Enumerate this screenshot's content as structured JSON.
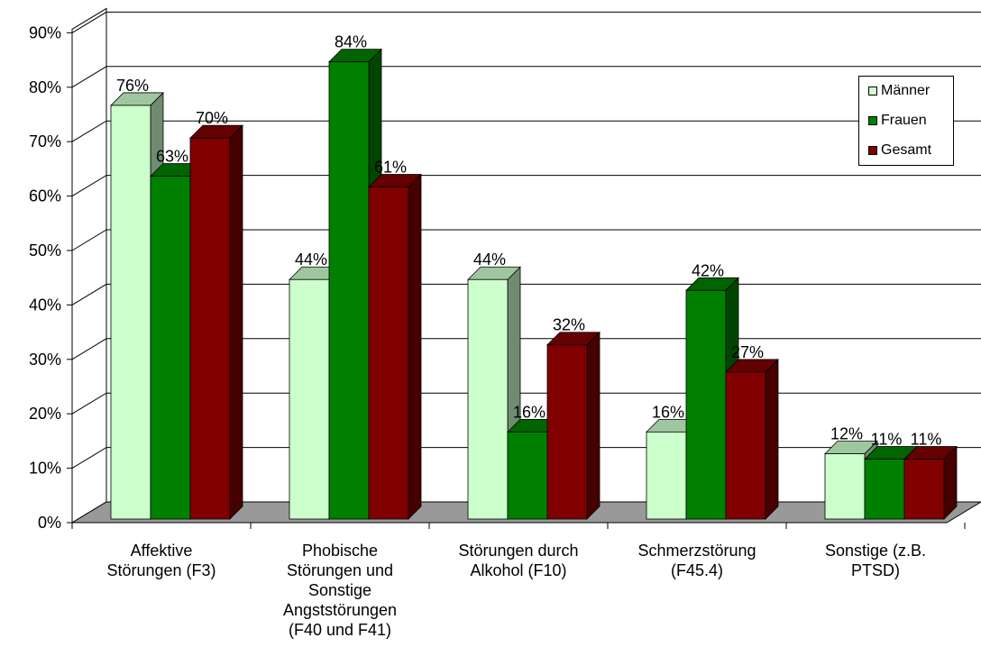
{
  "chart_data": {
    "type": "bar",
    "categories": [
      "Affektive Störungen (F3)",
      "Phobische Störungen und Sonstige Angststörungen (F40 und F41)",
      "Störungen durch Alkohol (F10)",
      "Schmerzstörung (F45.4)",
      "Sonstige (z.B. PTSD)"
    ],
    "category_lines": [
      [
        "Affektive",
        "Störungen (F3)"
      ],
      [
        "Phobische",
        "Störungen und",
        "Sonstige",
        "Angststörungen",
        "(F40 und F41)"
      ],
      [
        "Störungen durch",
        "Alkohol (F10)"
      ],
      [
        "Schmerzstörung",
        "(F45.4)"
      ],
      [
        "Sonstige (z.B.",
        "PTSD)"
      ]
    ],
    "series": [
      {
        "name": "Männer",
        "values": [
          76,
          44,
          44,
          16,
          12
        ],
        "labels": [
          "76%",
          "44%",
          "44%",
          "16%",
          "12%"
        ],
        "color": "#ccffcc"
      },
      {
        "name": "Frauen",
        "values": [
          63,
          84,
          16,
          42,
          11
        ],
        "labels": [
          "63%",
          "84%",
          "16%",
          "42%",
          "11%"
        ],
        "color": "#008000"
      },
      {
        "name": "Gesamt",
        "values": [
          70,
          61,
          32,
          27,
          11
        ],
        "labels": [
          "70%",
          "61%",
          "32%",
          "27%",
          "11%"
        ],
        "color": "#800000"
      }
    ],
    "y_ticks": [
      "0%",
      "10%",
      "20%",
      "30%",
      "40%",
      "50%",
      "60%",
      "70%",
      "80%",
      "90%"
    ],
    "ylim": [
      0,
      90
    ],
    "grid": true,
    "legend": "top-right",
    "three_d": true,
    "floor_color": "#999999"
  }
}
